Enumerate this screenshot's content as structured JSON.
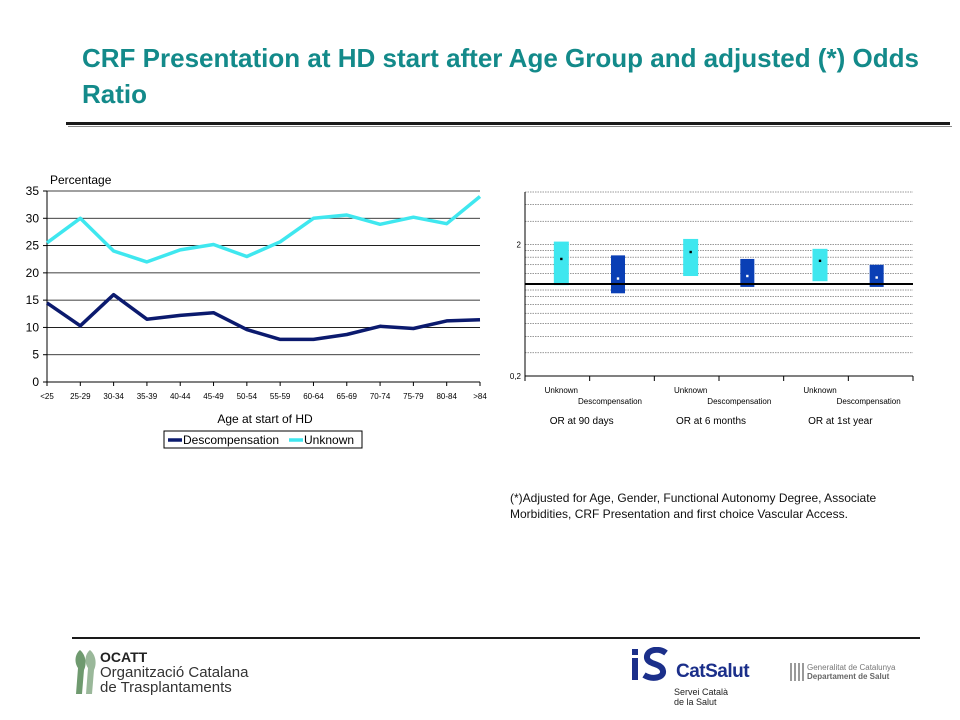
{
  "slide": {
    "title": "CRF Presentation at HD start after Age Group and adjusted (*) Odds Ratio",
    "footnote": "(*)Adjusted for Age, Gender, Functional Autonomy Degree, Associate Morbidities, CRF Presentation and first choice Vascular Access."
  },
  "logos": {
    "ocatt_name": "OCATT",
    "ocatt_line1": "Organització Catalana",
    "ocatt_line2": "de Trasplantaments",
    "catsalut_name": "CatSalut",
    "catsalut_line1": "Servei Català",
    "catsalut_line2": "de la Salut",
    "gen_line1": "Generalitat de Catalunya",
    "gen_line2": "Departament de Salut"
  },
  "colors": {
    "title": "#138a8a",
    "descompensation": "#0b1a6e",
    "unknown": "#3fe7ef",
    "or_dark": "#0a3fb5",
    "or_light": "#3fe7ef"
  },
  "chart_data": [
    {
      "type": "line",
      "ylabel": "Percentage",
      "xlabel": "Age at start of HD",
      "categories": [
        "<25",
        "25-29",
        "30-34",
        "35-39",
        "40-44",
        "45-49",
        "50-54",
        "55-59",
        "60-64",
        "65-69",
        "70-74",
        "75-79",
        "80-84",
        ">84"
      ],
      "ylim": [
        0,
        35
      ],
      "yticks": [
        0,
        5,
        10,
        15,
        20,
        25,
        30,
        35
      ],
      "grid": true,
      "legend": "bottom",
      "series": [
        {
          "name": "Descompensation",
          "values": [
            14.5,
            10.3,
            16,
            11.5,
            12.2,
            12.7,
            9.6,
            7.8,
            7.8,
            8.7,
            10.2,
            9.8,
            11.2,
            11.4
          ]
        },
        {
          "name": "Unknown",
          "values": [
            25.5,
            30,
            24,
            22,
            24.2,
            25.2,
            23,
            25.7,
            30,
            30.6,
            28.9,
            30.2,
            29,
            34
          ]
        }
      ]
    },
    {
      "type": "range",
      "scale": "log",
      "ylim": [
        0.2,
        5
      ],
      "ytick_labels": [
        "0,2",
        "2"
      ],
      "yticks": [
        0.2,
        2
      ],
      "reference_line": 1,
      "grid": true,
      "groups": [
        "OR at 90 days",
        "OR at 6 months",
        "OR at 1st year"
      ],
      "bar_labels": [
        "Unknown",
        "Descompensation"
      ],
      "bars": [
        {
          "group": "OR at 90 days",
          "label": "Unknown",
          "low": 0.98,
          "high": 2.1,
          "point": 1.55
        },
        {
          "group": "OR at 90 days",
          "label": "Descompensation",
          "low": 0.85,
          "high": 1.65,
          "point": 1.1
        },
        {
          "group": "OR at 6 months",
          "label": "Unknown",
          "low": 1.15,
          "high": 2.2,
          "point": 1.75
        },
        {
          "group": "OR at 6 months",
          "label": "Descompensation",
          "low": 0.95,
          "high": 1.55,
          "point": 1.15
        },
        {
          "group": "OR at 1st year",
          "label": "Unknown",
          "low": 1.05,
          "high": 1.85,
          "point": 1.5
        },
        {
          "group": "OR at 1st year",
          "label": "Descompensation",
          "low": 0.95,
          "high": 1.4,
          "point": 1.12
        }
      ]
    }
  ]
}
